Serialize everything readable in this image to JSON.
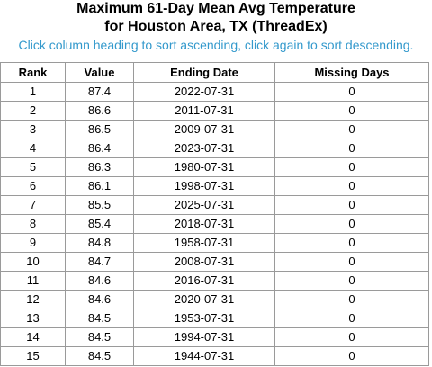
{
  "header": {
    "title_line1": "Maximum 61-Day Mean Avg Temperature",
    "title_line2": "for Houston Area, TX (ThreadEx)",
    "sort_hint": "Click column heading to sort ascending, click again to sort descending."
  },
  "colors": {
    "hint": "#3399cc",
    "border": "#9a9a9a"
  },
  "table": {
    "columns": [
      "Rank",
      "Value",
      "Ending Date",
      "Missing Days"
    ],
    "rows": [
      [
        "1",
        "87.4",
        "2022-07-31",
        "0"
      ],
      [
        "2",
        "86.6",
        "2011-07-31",
        "0"
      ],
      [
        "3",
        "86.5",
        "2009-07-31",
        "0"
      ],
      [
        "4",
        "86.4",
        "2023-07-31",
        "0"
      ],
      [
        "5",
        "86.3",
        "1980-07-31",
        "0"
      ],
      [
        "6",
        "86.1",
        "1998-07-31",
        "0"
      ],
      [
        "7",
        "85.5",
        "2025-07-31",
        "0"
      ],
      [
        "8",
        "85.4",
        "2018-07-31",
        "0"
      ],
      [
        "9",
        "84.8",
        "1958-07-31",
        "0"
      ],
      [
        "10",
        "84.7",
        "2008-07-31",
        "0"
      ],
      [
        "11",
        "84.6",
        "2016-07-31",
        "0"
      ],
      [
        "12",
        "84.6",
        "2020-07-31",
        "0"
      ],
      [
        "13",
        "84.5",
        "1953-07-31",
        "0"
      ],
      [
        "14",
        "84.5",
        "1994-07-31",
        "0"
      ],
      [
        "15",
        "84.5",
        "1944-07-31",
        "0"
      ]
    ]
  }
}
